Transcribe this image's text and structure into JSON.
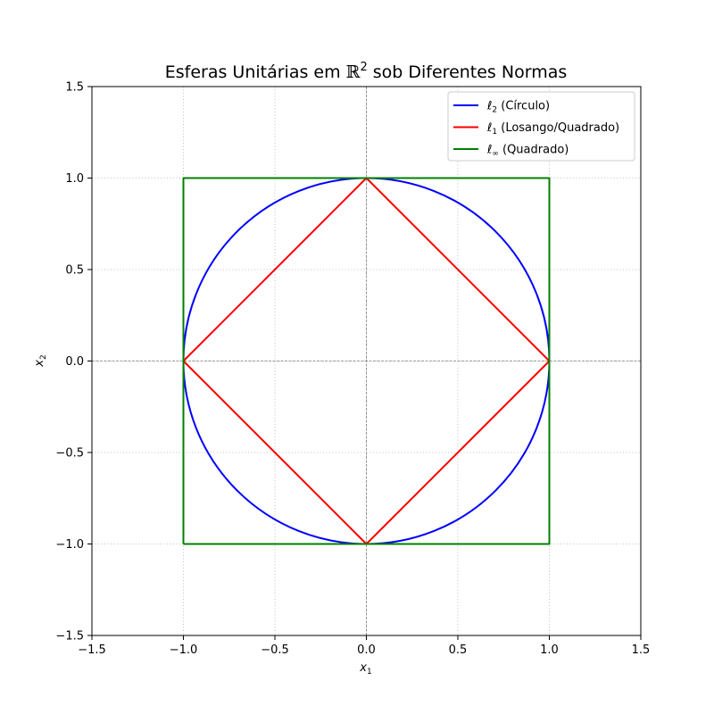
{
  "chart_data": {
    "type": "line",
    "title": {
      "prefix": "Esferas Unitárias em ",
      "symbol": "ℝ",
      "superscript": "2",
      "suffix": " sob Diferentes Normas"
    },
    "xlabel": {
      "base": "x",
      "sub": "1"
    },
    "ylabel": {
      "base": "x",
      "sub": "2"
    },
    "xlim": [
      -1.5,
      1.5
    ],
    "ylim": [
      -1.5,
      1.5
    ],
    "xticks": [
      {
        "value": -1.5,
        "label": "−1.5"
      },
      {
        "value": -1.0,
        "label": "−1.0"
      },
      {
        "value": -0.5,
        "label": "−0.5"
      },
      {
        "value": 0.0,
        "label": "0.0"
      },
      {
        "value": 0.5,
        "label": "0.5"
      },
      {
        "value": 1.0,
        "label": "1.0"
      },
      {
        "value": 1.5,
        "label": "1.5"
      }
    ],
    "yticks": [
      {
        "value": -1.5,
        "label": "−1.5"
      },
      {
        "value": -1.0,
        "label": "−1.0"
      },
      {
        "value": -0.5,
        "label": "−0.5"
      },
      {
        "value": 0.0,
        "label": "0.0"
      },
      {
        "value": 0.5,
        "label": "0.5"
      },
      {
        "value": 1.0,
        "label": "1.0"
      },
      {
        "value": 1.5,
        "label": "1.5"
      }
    ],
    "grid": true,
    "grid_style": "dotted",
    "axis_lines_at_zero": true,
    "aspect": "equal",
    "legend_position": "upper right",
    "series": [
      {
        "name": {
          "sym": "ℓ",
          "sub": "2",
          "text": " (Círculo)"
        },
        "color": "#0000ff",
        "shape": "circle",
        "radius": 1
      },
      {
        "name": {
          "sym": "ℓ",
          "sub": "1",
          "text": " (Losango/Quadrado)"
        },
        "color": "#ff0000",
        "shape": "polyline",
        "x": [
          1,
          0,
          -1,
          0,
          1
        ],
        "y": [
          0,
          1,
          0,
          -1,
          0
        ]
      },
      {
        "name": {
          "sym": "ℓ",
          "sub": "∞",
          "text": " (Quadrado)"
        },
        "color": "#008000",
        "shape": "polyline",
        "x": [
          -1,
          1,
          1,
          -1,
          -1
        ],
        "y": [
          -1,
          -1,
          1,
          1,
          -1
        ]
      }
    ]
  }
}
